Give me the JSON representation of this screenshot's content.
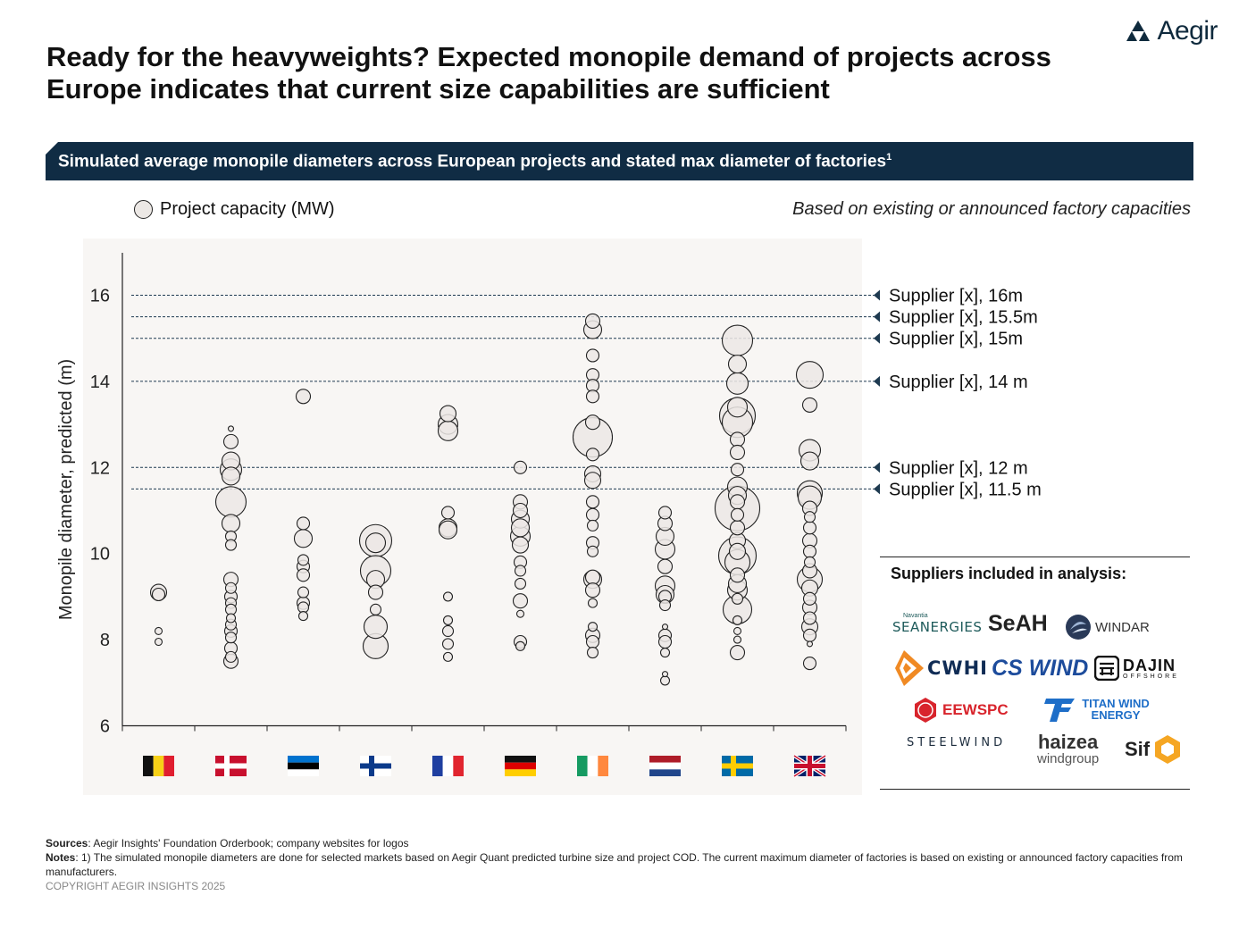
{
  "brand": {
    "name": "Aegir"
  },
  "title": "Ready for the heavyweights? Expected monopile demand of projects across Europe indicates that current size capabilities are sufficient",
  "banner": {
    "text": "Simulated average monopile diameters across European projects and stated max diameter of factories",
    "footnote_mark": "1"
  },
  "legend": {
    "label": "Project capacity (MW)"
  },
  "note_right": "Based on existing or announced factory capacities",
  "chart_data": {
    "type": "scatter",
    "title": "",
    "xlabel": "",
    "ylabel": "Monopile diameter, predicted (m)",
    "ylim": [
      6,
      17
    ],
    "yticks": [
      6,
      8,
      10,
      12,
      14,
      16
    ],
    "grid": false,
    "categories": [
      "Belgium",
      "Denmark",
      "Estonia",
      "Finland",
      "France",
      "Germany",
      "Ireland",
      "Netherlands",
      "Sweden",
      "United Kingdom"
    ],
    "size_encoding": "Project capacity (MW)",
    "thresholds": [
      {
        "label": "Supplier [x], 16m",
        "value": 16
      },
      {
        "label": "Supplier [x], 15.5m",
        "value": 15.5
      },
      {
        "label": "Supplier [x], 15m",
        "value": 15
      },
      {
        "label": "Supplier [x], 14 m",
        "value": 14
      },
      {
        "label": "Supplier [x], 12 m",
        "value": 12
      },
      {
        "label": "Supplier [x], 11.5 m",
        "value": 11.5
      }
    ],
    "points": [
      {
        "c": 0,
        "y": 9.1,
        "s": 9
      },
      {
        "c": 0,
        "y": 9.05,
        "s": 7
      },
      {
        "c": 0,
        "y": 8.2,
        "s": 4
      },
      {
        "c": 0,
        "y": 7.95,
        "s": 4
      },
      {
        "c": 1,
        "y": 12.9,
        "s": 3
      },
      {
        "c": 1,
        "y": 12.6,
        "s": 8
      },
      {
        "c": 1,
        "y": 12.15,
        "s": 10
      },
      {
        "c": 1,
        "y": 11.95,
        "s": 12
      },
      {
        "c": 1,
        "y": 11.8,
        "s": 10
      },
      {
        "c": 1,
        "y": 11.2,
        "s": 17
      },
      {
        "c": 1,
        "y": 10.7,
        "s": 10
      },
      {
        "c": 1,
        "y": 10.4,
        "s": 6
      },
      {
        "c": 1,
        "y": 10.2,
        "s": 6
      },
      {
        "c": 1,
        "y": 9.4,
        "s": 8
      },
      {
        "c": 1,
        "y": 9.2,
        "s": 6
      },
      {
        "c": 1,
        "y": 9.0,
        "s": 7
      },
      {
        "c": 1,
        "y": 8.85,
        "s": 6
      },
      {
        "c": 1,
        "y": 8.7,
        "s": 6
      },
      {
        "c": 1,
        "y": 8.5,
        "s": 5
      },
      {
        "c": 1,
        "y": 8.35,
        "s": 6
      },
      {
        "c": 1,
        "y": 8.2,
        "s": 7
      },
      {
        "c": 1,
        "y": 8.05,
        "s": 6
      },
      {
        "c": 1,
        "y": 7.8,
        "s": 7
      },
      {
        "c": 1,
        "y": 7.6,
        "s": 6
      },
      {
        "c": 1,
        "y": 7.5,
        "s": 8
      },
      {
        "c": 2,
        "y": 13.65,
        "s": 8
      },
      {
        "c": 2,
        "y": 10.7,
        "s": 7
      },
      {
        "c": 2,
        "y": 10.35,
        "s": 10
      },
      {
        "c": 2,
        "y": 9.85,
        "s": 6
      },
      {
        "c": 2,
        "y": 9.7,
        "s": 7
      },
      {
        "c": 2,
        "y": 9.5,
        "s": 7
      },
      {
        "c": 2,
        "y": 9.1,
        "s": 6
      },
      {
        "c": 2,
        "y": 8.85,
        "s": 7
      },
      {
        "c": 2,
        "y": 8.75,
        "s": 6
      },
      {
        "c": 2,
        "y": 8.55,
        "s": 5
      },
      {
        "c": 3,
        "y": 10.3,
        "s": 18
      },
      {
        "c": 3,
        "y": 10.25,
        "s": 11
      },
      {
        "c": 3,
        "y": 9.6,
        "s": 17
      },
      {
        "c": 3,
        "y": 9.4,
        "s": 10
      },
      {
        "c": 3,
        "y": 9.1,
        "s": 8
      },
      {
        "c": 3,
        "y": 8.7,
        "s": 6
      },
      {
        "c": 3,
        "y": 8.3,
        "s": 13
      },
      {
        "c": 3,
        "y": 7.85,
        "s": 14
      },
      {
        "c": 4,
        "y": 13.25,
        "s": 9
      },
      {
        "c": 4,
        "y": 13.0,
        "s": 11
      },
      {
        "c": 4,
        "y": 12.85,
        "s": 11
      },
      {
        "c": 4,
        "y": 10.95,
        "s": 7
      },
      {
        "c": 4,
        "y": 10.6,
        "s": 10
      },
      {
        "c": 4,
        "y": 10.55,
        "s": 10
      },
      {
        "c": 4,
        "y": 9.0,
        "s": 5
      },
      {
        "c": 4,
        "y": 8.45,
        "s": 5
      },
      {
        "c": 4,
        "y": 8.2,
        "s": 6
      },
      {
        "c": 4,
        "y": 7.9,
        "s": 6
      },
      {
        "c": 4,
        "y": 7.6,
        "s": 5
      },
      {
        "c": 5,
        "y": 12.0,
        "s": 7
      },
      {
        "c": 5,
        "y": 11.2,
        "s": 8
      },
      {
        "c": 5,
        "y": 11.0,
        "s": 8
      },
      {
        "c": 5,
        "y": 10.8,
        "s": 10
      },
      {
        "c": 5,
        "y": 10.6,
        "s": 10
      },
      {
        "c": 5,
        "y": 10.4,
        "s": 11
      },
      {
        "c": 5,
        "y": 10.2,
        "s": 9
      },
      {
        "c": 5,
        "y": 9.8,
        "s": 7
      },
      {
        "c": 5,
        "y": 9.6,
        "s": 6
      },
      {
        "c": 5,
        "y": 9.3,
        "s": 6
      },
      {
        "c": 5,
        "y": 8.9,
        "s": 8
      },
      {
        "c": 5,
        "y": 8.6,
        "s": 4
      },
      {
        "c": 5,
        "y": 7.95,
        "s": 7
      },
      {
        "c": 5,
        "y": 7.85,
        "s": 5
      },
      {
        "c": 6,
        "y": 15.4,
        "s": 8
      },
      {
        "c": 6,
        "y": 15.2,
        "s": 10
      },
      {
        "c": 6,
        "y": 14.6,
        "s": 7
      },
      {
        "c": 6,
        "y": 14.15,
        "s": 7
      },
      {
        "c": 6,
        "y": 13.9,
        "s": 7
      },
      {
        "c": 6,
        "y": 13.65,
        "s": 7
      },
      {
        "c": 6,
        "y": 13.05,
        "s": 8
      },
      {
        "c": 6,
        "y": 12.7,
        "s": 22
      },
      {
        "c": 6,
        "y": 12.3,
        "s": 7
      },
      {
        "c": 6,
        "y": 11.85,
        "s": 9
      },
      {
        "c": 6,
        "y": 11.7,
        "s": 9
      },
      {
        "c": 6,
        "y": 11.2,
        "s": 7
      },
      {
        "c": 6,
        "y": 10.9,
        "s": 7
      },
      {
        "c": 6,
        "y": 10.65,
        "s": 6
      },
      {
        "c": 6,
        "y": 10.25,
        "s": 7
      },
      {
        "c": 6,
        "y": 10.05,
        "s": 6
      },
      {
        "c": 6,
        "y": 9.45,
        "s": 8
      },
      {
        "c": 6,
        "y": 9.4,
        "s": 10
      },
      {
        "c": 6,
        "y": 9.15,
        "s": 8
      },
      {
        "c": 6,
        "y": 8.85,
        "s": 5
      },
      {
        "c": 6,
        "y": 8.3,
        "s": 5
      },
      {
        "c": 6,
        "y": 8.1,
        "s": 8
      },
      {
        "c": 6,
        "y": 7.95,
        "s": 7
      },
      {
        "c": 6,
        "y": 7.7,
        "s": 6
      },
      {
        "c": 7,
        "y": 10.95,
        "s": 7
      },
      {
        "c": 7,
        "y": 10.7,
        "s": 8
      },
      {
        "c": 7,
        "y": 10.4,
        "s": 10
      },
      {
        "c": 7,
        "y": 10.1,
        "s": 11
      },
      {
        "c": 7,
        "y": 9.7,
        "s": 8
      },
      {
        "c": 7,
        "y": 9.25,
        "s": 11
      },
      {
        "c": 7,
        "y": 9.05,
        "s": 10
      },
      {
        "c": 7,
        "y": 9.0,
        "s": 7
      },
      {
        "c": 7,
        "y": 8.8,
        "s": 6
      },
      {
        "c": 7,
        "y": 8.3,
        "s": 3
      },
      {
        "c": 7,
        "y": 8.1,
        "s": 7
      },
      {
        "c": 7,
        "y": 7.95,
        "s": 7
      },
      {
        "c": 7,
        "y": 7.7,
        "s": 5
      },
      {
        "c": 7,
        "y": 7.2,
        "s": 3
      },
      {
        "c": 7,
        "y": 7.05,
        "s": 5
      },
      {
        "c": 8,
        "y": 14.95,
        "s": 17
      },
      {
        "c": 8,
        "y": 14.4,
        "s": 10
      },
      {
        "c": 8,
        "y": 13.95,
        "s": 12
      },
      {
        "c": 8,
        "y": 13.4,
        "s": 11
      },
      {
        "c": 8,
        "y": 13.2,
        "s": 20
      },
      {
        "c": 8,
        "y": 13.05,
        "s": 17
      },
      {
        "c": 8,
        "y": 12.65,
        "s": 8
      },
      {
        "c": 8,
        "y": 12.35,
        "s": 8
      },
      {
        "c": 8,
        "y": 11.95,
        "s": 7
      },
      {
        "c": 8,
        "y": 11.55,
        "s": 11
      },
      {
        "c": 8,
        "y": 11.35,
        "s": 10
      },
      {
        "c": 8,
        "y": 11.2,
        "s": 8
      },
      {
        "c": 8,
        "y": 11.05,
        "s": 25
      },
      {
        "c": 8,
        "y": 10.9,
        "s": 7
      },
      {
        "c": 8,
        "y": 10.6,
        "s": 8
      },
      {
        "c": 8,
        "y": 10.3,
        "s": 9
      },
      {
        "c": 8,
        "y": 10.05,
        "s": 9
      },
      {
        "c": 8,
        "y": 9.95,
        "s": 21
      },
      {
        "c": 8,
        "y": 9.8,
        "s": 14
      },
      {
        "c": 8,
        "y": 9.5,
        "s": 8
      },
      {
        "c": 8,
        "y": 9.3,
        "s": 10
      },
      {
        "c": 8,
        "y": 9.15,
        "s": 11
      },
      {
        "c": 8,
        "y": 8.95,
        "s": 6
      },
      {
        "c": 8,
        "y": 8.7,
        "s": 16
      },
      {
        "c": 8,
        "y": 8.45,
        "s": 5
      },
      {
        "c": 8,
        "y": 8.2,
        "s": 4
      },
      {
        "c": 8,
        "y": 8.0,
        "s": 4
      },
      {
        "c": 8,
        "y": 7.7,
        "s": 8
      },
      {
        "c": 9,
        "y": 14.15,
        "s": 15
      },
      {
        "c": 9,
        "y": 13.45,
        "s": 8
      },
      {
        "c": 9,
        "y": 12.4,
        "s": 12
      },
      {
        "c": 9,
        "y": 12.15,
        "s": 10
      },
      {
        "c": 9,
        "y": 11.4,
        "s": 14
      },
      {
        "c": 9,
        "y": 11.3,
        "s": 13
      },
      {
        "c": 9,
        "y": 11.05,
        "s": 8
      },
      {
        "c": 9,
        "y": 10.85,
        "s": 6
      },
      {
        "c": 9,
        "y": 10.6,
        "s": 7
      },
      {
        "c": 9,
        "y": 10.3,
        "s": 8
      },
      {
        "c": 9,
        "y": 10.05,
        "s": 7
      },
      {
        "c": 9,
        "y": 9.8,
        "s": 6
      },
      {
        "c": 9,
        "y": 9.6,
        "s": 8
      },
      {
        "c": 9,
        "y": 9.4,
        "s": 14
      },
      {
        "c": 9,
        "y": 9.2,
        "s": 9
      },
      {
        "c": 9,
        "y": 8.95,
        "s": 7
      },
      {
        "c": 9,
        "y": 8.75,
        "s": 8
      },
      {
        "c": 9,
        "y": 8.5,
        "s": 7
      },
      {
        "c": 9,
        "y": 8.3,
        "s": 9
      },
      {
        "c": 9,
        "y": 8.1,
        "s": 7
      },
      {
        "c": 9,
        "y": 7.9,
        "s": 3
      },
      {
        "c": 9,
        "y": 7.45,
        "s": 7
      }
    ]
  },
  "suppliers": {
    "title": "Suppliers included in analysis:",
    "logos": [
      {
        "name": "SEANERGIES",
        "sub": "Navantia",
        "color": "#1d5a5a"
      },
      {
        "name": "SeAH",
        "color": "#222222"
      },
      {
        "name": "WINDAR",
        "color": "#333333"
      },
      {
        "name": "CWHI",
        "color": "#102c55",
        "accent": "#f08a24"
      },
      {
        "name": "CS WIND",
        "color": "#1d4c9c"
      },
      {
        "name": "DAJIN",
        "sub": "OFFSHORE",
        "color": "#111111"
      },
      {
        "name": "EEWSPC",
        "color": "#d8242c"
      },
      {
        "name": "TITAN WIND ENERGY",
        "color": "#1e6ec8"
      },
      {
        "name": "STEELWIND",
        "color": "#1b2b3c"
      },
      {
        "name": "haizea",
        "sub": "windgroup",
        "color": "#333333"
      },
      {
        "name": "Sif",
        "color": "#222222",
        "accent": "#f5a623"
      }
    ]
  },
  "footer": {
    "sources_label": "Sources",
    "sources_text": ": Aegir Insights' Foundation Orderbook; company websites for logos",
    "notes_label": "Notes",
    "notes_text": ": 1) The simulated monopile diameters are done for selected markets based on Aegir Quant predicted turbine size and project COD. The current maximum diameter of factories is based on existing or announced factory capacities from manufacturers.",
    "copyright": "COPYRIGHT AEGIR INSIGHTS 2025"
  }
}
